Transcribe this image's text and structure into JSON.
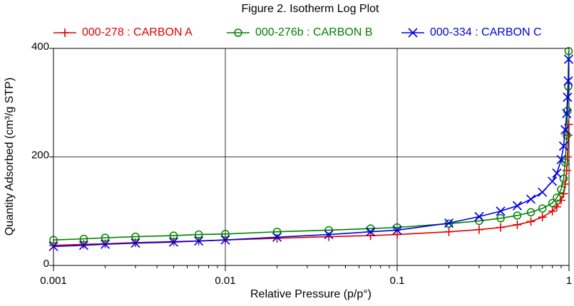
{
  "chart_data": {
    "type": "line",
    "title": "Figure 2. Isotherm Log Plot",
    "x_label": "Relative Pressure (p/p°)",
    "y_label": "Quantity Adsorbed (cm³/g STP)",
    "xscale": "log",
    "xlim": [
      0.001,
      1
    ],
    "xticks": [
      0.001,
      0.01,
      0.1,
      1
    ],
    "ylim": [
      0,
      400
    ],
    "yticks": [
      0,
      200,
      400
    ],
    "grid": true,
    "legend": "top",
    "series": [
      {
        "name": "000-278 : CARBON A",
        "color": "#e00000",
        "marker": "plus",
        "x": [
          0.001,
          0.0015,
          0.002,
          0.003,
          0.005,
          0.007,
          0.01,
          0.02,
          0.04,
          0.07,
          0.1,
          0.2,
          0.3,
          0.4,
          0.5,
          0.6,
          0.7,
          0.8,
          0.85,
          0.9,
          0.93,
          0.95,
          0.97,
          0.98,
          0.99,
          0.995
        ],
        "values": [
          37,
          39,
          40,
          42,
          44,
          45,
          47,
          50,
          53,
          55,
          57,
          62,
          66,
          70,
          75,
          81,
          89,
          100,
          108,
          120,
          132,
          150,
          175,
          200,
          240,
          260
        ]
      },
      {
        "name": "000-276b : CARBON B",
        "color": "#008000",
        "marker": "circle",
        "x": [
          0.001,
          0.0015,
          0.002,
          0.003,
          0.005,
          0.007,
          0.01,
          0.02,
          0.04,
          0.07,
          0.1,
          0.2,
          0.3,
          0.4,
          0.5,
          0.6,
          0.7,
          0.8,
          0.85,
          0.9,
          0.93,
          0.95,
          0.97,
          0.98,
          0.99,
          0.995
        ],
        "values": [
          47,
          49,
          51,
          53,
          55,
          57,
          58,
          62,
          65,
          68,
          70,
          77,
          82,
          87,
          92,
          98,
          105,
          115,
          125,
          140,
          160,
          190,
          240,
          285,
          330,
          395
        ]
      },
      {
        "name": "000-334 : CARBON C",
        "color": "#0000e0",
        "marker": "x",
        "x": [
          0.001,
          0.0015,
          0.002,
          0.003,
          0.005,
          0.007,
          0.01,
          0.02,
          0.04,
          0.07,
          0.1,
          0.2,
          0.3,
          0.4,
          0.5,
          0.6,
          0.7,
          0.8,
          0.85,
          0.9,
          0.93,
          0.95,
          0.97,
          0.98,
          0.99,
          0.995
        ],
        "values": [
          35,
          37,
          39,
          41,
          43,
          45,
          47,
          52,
          57,
          62,
          65,
          78,
          90,
          100,
          110,
          122,
          135,
          155,
          170,
          195,
          220,
          250,
          280,
          310,
          340,
          380
        ]
      }
    ]
  }
}
